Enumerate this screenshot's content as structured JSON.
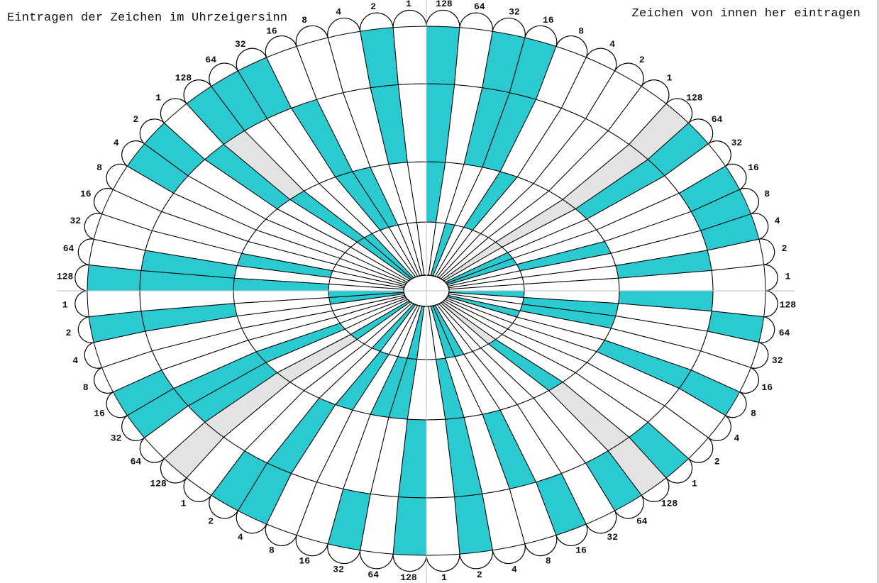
{
  "captions": {
    "left": "Eintragen der Zeichen im Uhrzeigersinn",
    "right": "Zeichen von innen her eintragen"
  },
  "bit_labels": [
    "128",
    "64",
    "32",
    "16",
    "8",
    "4",
    "2",
    "1"
  ],
  "colors": {
    "set": "#2bcad0",
    "marker": "#e3e3e3",
    "empty": "#ffffff",
    "stroke": "#000000",
    "axis": "#bfbfbf"
  },
  "diagram": {
    "groups": 4,
    "bits_per_group": 8,
    "rings": 4
  },
  "ring_bits": [
    [
      [
        0,
        0,
        1,
        0,
        0,
        0,
        0,
        0,
        0,
        0,
        1,
        1,
        0,
        0,
        0,
        0,
        1,
        0,
        0,
        1,
        0,
        0,
        0,
        0,
        0,
        0,
        0,
        0,
        1,
        1,
        0,
        0,
        0,
        1,
        0,
        0,
        0,
        1,
        0,
        0,
        1,
        0,
        0,
        0,
        0,
        0,
        1,
        1,
        0,
        0,
        0,
        0,
        0,
        0,
        0,
        0,
        1,
        1,
        0,
        0,
        0,
        0,
        0,
        0
      ],
      [
        1,
        0,
        0,
        0,
        1,
        0,
        0,
        0,
        0,
        0,
        0,
        0,
        1,
        0,
        0,
        0,
        0,
        1,
        1,
        0,
        0,
        0,
        0,
        0,
        1,
        0,
        0,
        0,
        0,
        0,
        1,
        0,
        0,
        1,
        1,
        0,
        1,
        0,
        0,
        0,
        0,
        0,
        1,
        0,
        0,
        0,
        0,
        0,
        1,
        0,
        1,
        0,
        0,
        0,
        0,
        0,
        1,
        0,
        0,
        1,
        1,
        0,
        0,
        0
      ],
      [
        1,
        0,
        1,
        1,
        0,
        0,
        0,
        0,
        0,
        1,
        0,
        0,
        0,
        0,
        1,
        0,
        1,
        0,
        0,
        0,
        1,
        0,
        0,
        0,
        0,
        0,
        0,
        0,
        1,
        0,
        1,
        0,
        1,
        0,
        0,
        0,
        0,
        1,
        0,
        0,
        0,
        1,
        1,
        0,
        0,
        0,
        1,
        0,
        1,
        1,
        0,
        0,
        0,
        0,
        0,
        1,
        0,
        0,
        0,
        1,
        0,
        0,
        1,
        0
      ],
      [
        1,
        0,
        1,
        1,
        0,
        0,
        0,
        0,
        0,
        1,
        0,
        1,
        1,
        1,
        0,
        0,
        0,
        1,
        0,
        0,
        1,
        0,
        0,
        1,
        0,
        1,
        0,
        1,
        0,
        0,
        1,
        0,
        1,
        0,
        1,
        0,
        0,
        1,
        1,
        0,
        0,
        0,
        1,
        1,
        0,
        0,
        1,
        0,
        1,
        0,
        0,
        0,
        0,
        1,
        1,
        0,
        1,
        1,
        1,
        0,
        0,
        0,
        1,
        0
      ]
    ]
  ]
}
